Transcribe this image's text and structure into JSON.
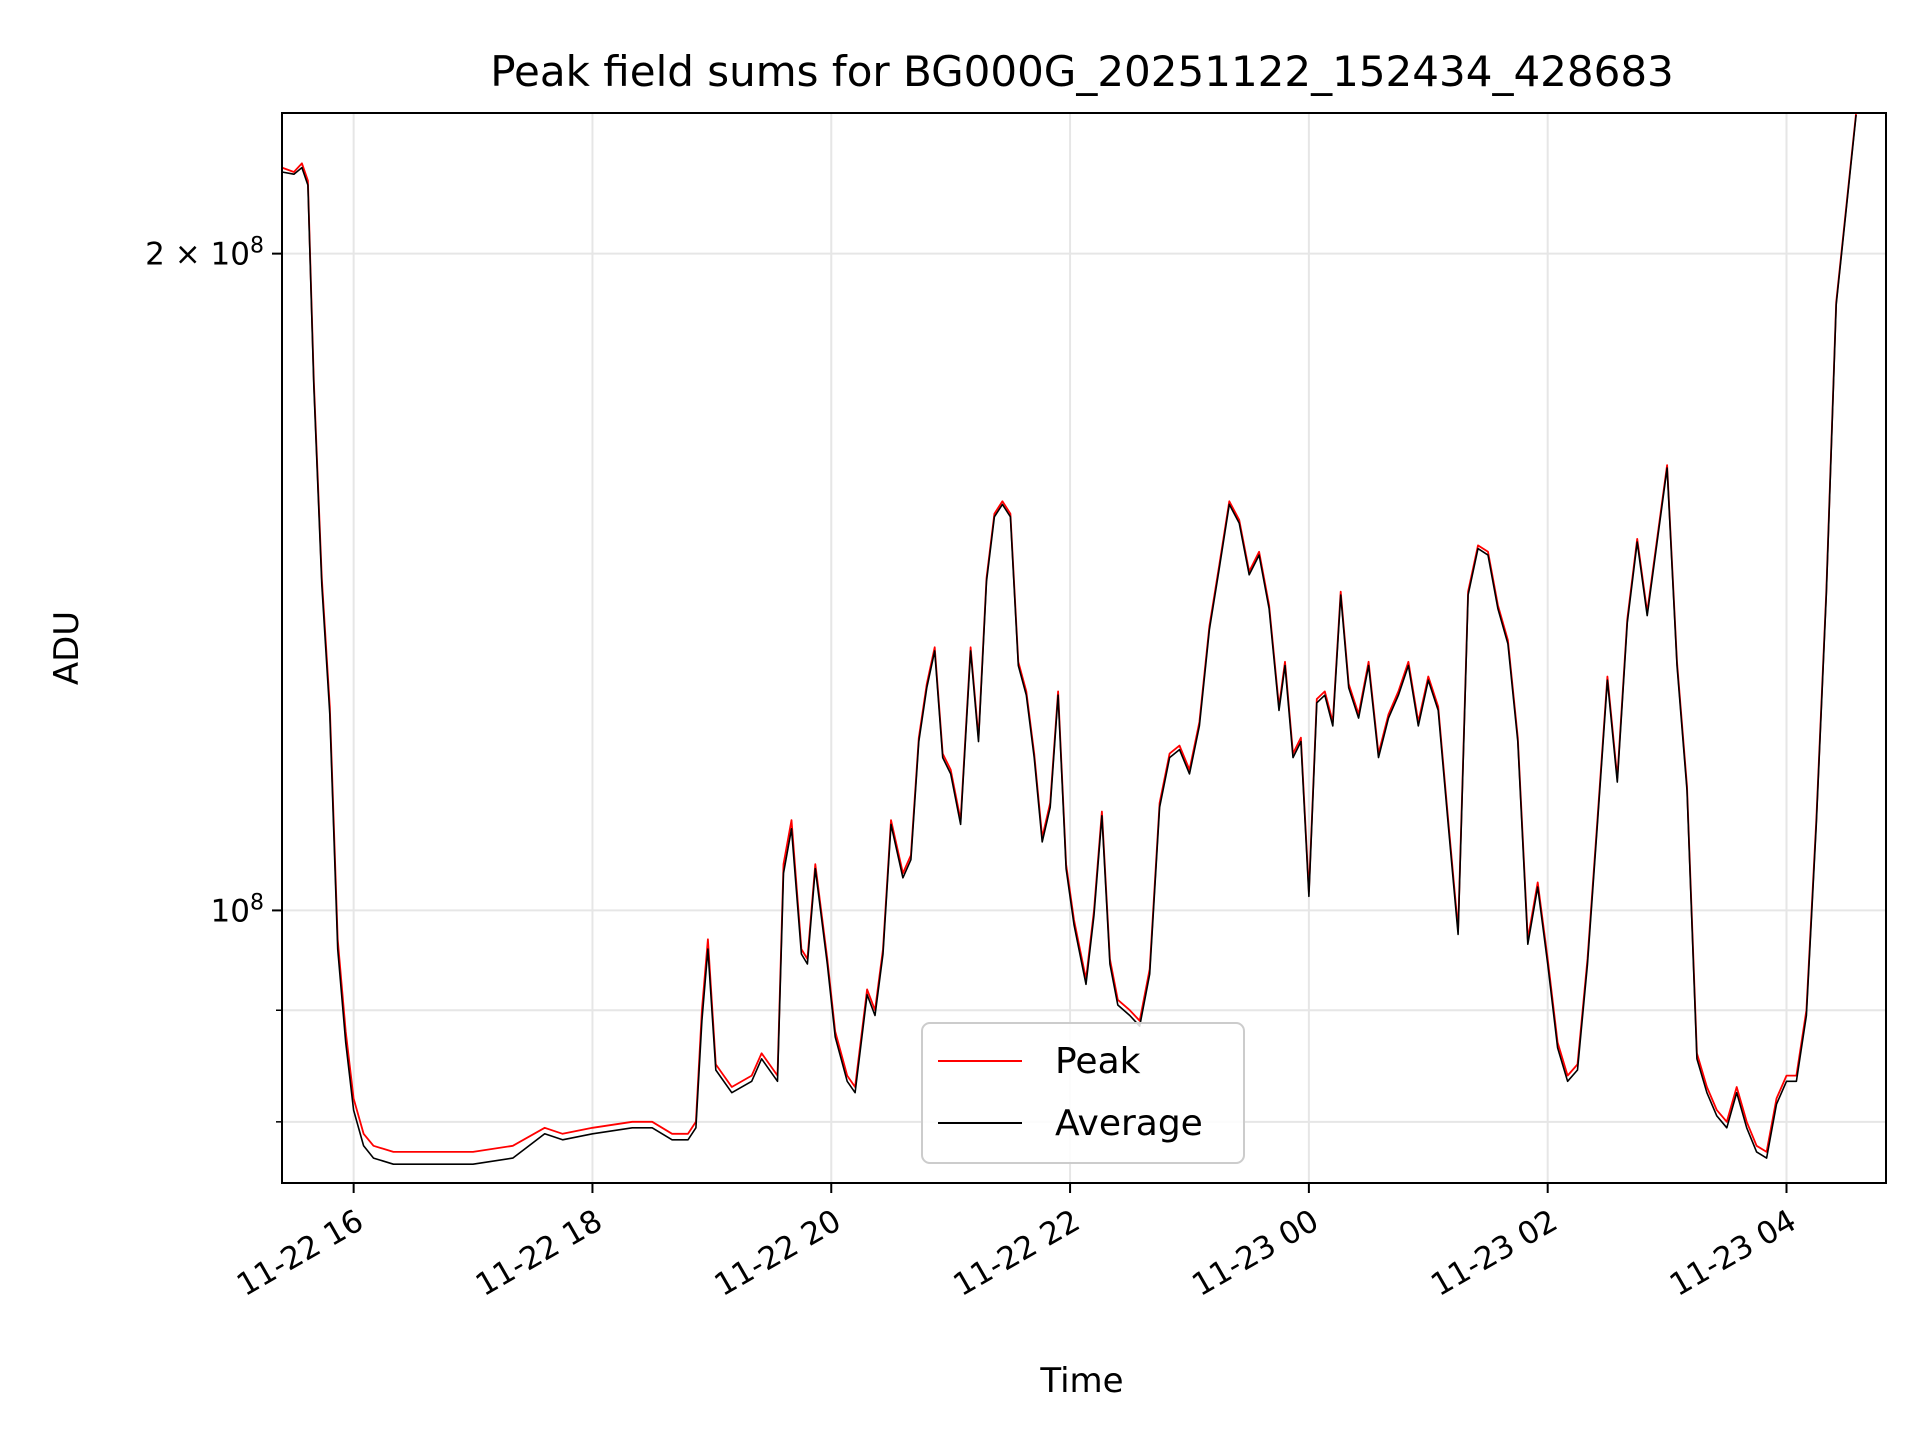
{
  "chart_data": {
    "type": "line",
    "title": "Peak field sums for BG000G_20251122_152434_428683",
    "xlabel": "Time",
    "ylabel": "ADU",
    "y_scale": "log",
    "grid": true,
    "legend_position": "lower-center",
    "xlim": [
      "2025-11-22 15:24",
      "2025-11-23 04:50"
    ],
    "ylim": [
      75000000,
      232000000
    ],
    "x_ticks": [
      {
        "t": "2025-11-22 16:00",
        "label": "11-22 16"
      },
      {
        "t": "2025-11-22 18:00",
        "label": "11-22 18"
      },
      {
        "t": "2025-11-22 20:00",
        "label": "11-22 20"
      },
      {
        "t": "2025-11-22 22:00",
        "label": "11-22 22"
      },
      {
        "t": "2025-11-23 00:00",
        "label": "11-23 00"
      },
      {
        "t": "2025-11-23 02:00",
        "label": "11-23 02"
      },
      {
        "t": "2025-11-23 04:00",
        "label": "11-23 04"
      }
    ],
    "y_ticks_major": [
      {
        "value": 100000000,
        "base": "10",
        "exp": "8",
        "coef": ""
      },
      {
        "value": 200000000,
        "base": "10",
        "exp": "8",
        "coef": "2"
      }
    ],
    "y_ticks_minor": [
      80000000,
      90000000
    ],
    "series": [
      {
        "name": "Peak",
        "color": "#ff0000"
      },
      {
        "name": "Average",
        "color": "#000000"
      }
    ],
    "x": [
      "2025-11-22 15:24",
      "2025-11-22 15:30",
      "2025-11-22 15:34",
      "2025-11-22 15:37",
      "2025-11-22 15:40",
      "2025-11-22 15:44",
      "2025-11-22 15:48",
      "2025-11-22 15:52",
      "2025-11-22 15:56",
      "2025-11-22 16:00",
      "2025-11-22 16:05",
      "2025-11-22 16:10",
      "2025-11-22 16:20",
      "2025-11-22 16:40",
      "2025-11-22 17:00",
      "2025-11-22 17:20",
      "2025-11-22 17:36",
      "2025-11-22 17:45",
      "2025-11-22 18:00",
      "2025-11-22 18:20",
      "2025-11-22 18:30",
      "2025-11-22 18:40",
      "2025-11-22 18:48",
      "2025-11-22 18:52",
      "2025-11-22 18:55",
      "2025-11-22 18:58",
      "2025-11-22 19:02",
      "2025-11-22 19:10",
      "2025-11-22 19:20",
      "2025-11-22 19:25",
      "2025-11-22 19:33",
      "2025-11-22 19:36",
      "2025-11-22 19:40",
      "2025-11-22 19:45",
      "2025-11-22 19:48",
      "2025-11-22 19:52",
      "2025-11-22 19:58",
      "2025-11-22 20:02",
      "2025-11-22 20:08",
      "2025-11-22 20:12",
      "2025-11-22 20:18",
      "2025-11-22 20:22",
      "2025-11-22 20:26",
      "2025-11-22 20:30",
      "2025-11-22 20:36",
      "2025-11-22 20:40",
      "2025-11-22 20:44",
      "2025-11-22 20:48",
      "2025-11-22 20:52",
      "2025-11-22 20:56",
      "2025-11-22 21:00",
      "2025-11-22 21:05",
      "2025-11-22 21:10",
      "2025-11-22 21:14",
      "2025-11-22 21:18",
      "2025-11-22 21:22",
      "2025-11-22 21:26",
      "2025-11-22 21:30",
      "2025-11-22 21:34",
      "2025-11-22 21:38",
      "2025-11-22 21:42",
      "2025-11-22 21:46",
      "2025-11-22 21:50",
      "2025-11-22 21:54",
      "2025-11-22 21:58",
      "2025-11-22 22:02",
      "2025-11-22 22:08",
      "2025-11-22 22:12",
      "2025-11-22 22:16",
      "2025-11-22 22:20",
      "2025-11-22 22:24",
      "2025-11-22 22:30",
      "2025-11-22 22:35",
      "2025-11-22 22:40",
      "2025-11-22 22:45",
      "2025-11-22 22:50",
      "2025-11-22 22:55",
      "2025-11-22 23:00",
      "2025-11-22 23:05",
      "2025-11-22 23:10",
      "2025-11-22 23:15",
      "2025-11-22 23:20",
      "2025-11-22 23:25",
      "2025-11-22 23:30",
      "2025-11-22 23:35",
      "2025-11-22 23:40",
      "2025-11-22 23:45",
      "2025-11-22 23:48",
      "2025-11-22 23:52",
      "2025-11-22 23:56",
      "2025-11-23 00:00",
      "2025-11-23 00:04",
      "2025-11-23 00:08",
      "2025-11-23 00:12",
      "2025-11-23 00:16",
      "2025-11-23 00:20",
      "2025-11-23 00:25",
      "2025-11-23 00:30",
      "2025-11-23 00:35",
      "2025-11-23 00:40",
      "2025-11-23 00:45",
      "2025-11-23 00:50",
      "2025-11-23 00:55",
      "2025-11-23 01:00",
      "2025-11-23 01:05",
      "2025-11-23 01:10",
      "2025-11-23 01:15",
      "2025-11-23 01:20",
      "2025-11-23 01:25",
      "2025-11-23 01:30",
      "2025-11-23 01:35",
      "2025-11-23 01:40",
      "2025-11-23 01:45",
      "2025-11-23 01:50",
      "2025-11-23 01:55",
      "2025-11-23 02:00",
      "2025-11-23 02:05",
      "2025-11-23 02:10",
      "2025-11-23 02:15",
      "2025-11-23 02:20",
      "2025-11-23 02:25",
      "2025-11-23 02:30",
      "2025-11-23 02:35",
      "2025-11-23 02:40",
      "2025-11-23 02:45",
      "2025-11-23 02:50",
      "2025-11-23 02:55",
      "2025-11-23 03:00",
      "2025-11-23 03:05",
      "2025-11-23 03:10",
      "2025-11-23 03:15",
      "2025-11-23 03:20",
      "2025-11-23 03:25",
      "2025-11-23 03:30",
      "2025-11-23 03:35",
      "2025-11-23 03:40",
      "2025-11-23 03:45",
      "2025-11-23 03:50",
      "2025-11-23 03:55",
      "2025-11-23 04:00",
      "2025-11-23 04:05",
      "2025-11-23 04:10",
      "2025-11-23 04:15",
      "2025-11-23 04:20",
      "2025-11-23 04:25",
      "2025-11-23 04:30",
      "2025-11-23 04:35",
      "2025-11-23 04:40",
      "2025-11-23 04:45",
      "2025-11-23 04:50"
    ],
    "peak": [
      219000000,
      218000000,
      220000000,
      216000000,
      175000000,
      142000000,
      124000000,
      97000000,
      88000000,
      82000000,
      79000000,
      78000000,
      77500000,
      77500000,
      77500000,
      78000000,
      79500000,
      79000000,
      79500000,
      80000000,
      80000000,
      79000000,
      79000000,
      80000000,
      90000000,
      97000000,
      85000000,
      83000000,
      84000000,
      86000000,
      84000000,
      105000000,
      110000000,
      96000000,
      95000000,
      105000000,
      95000000,
      88000000,
      84000000,
      83000000,
      92000000,
      90000000,
      96000000,
      110000000,
      104000000,
      106000000,
      120000000,
      127000000,
      132000000,
      118000000,
      116000000,
      110000000,
      132000000,
      120000000,
      142000000,
      152000000,
      154000000,
      152000000,
      130000000,
      126000000,
      118000000,
      108000000,
      112000000,
      126000000,
      105000000,
      99000000,
      93000000,
      100000000,
      111000000,
      95000000,
      91000000,
      90000000,
      89000000,
      94000000,
      112000000,
      118000000,
      119000000,
      116000000,
      122000000,
      135000000,
      144000000,
      154000000,
      151000000,
      143000000,
      146000000,
      138000000,
      124000000,
      130000000,
      118000000,
      120000000,
      102000000,
      125000000,
      126000000,
      122000000,
      140000000,
      127000000,
      123000000,
      130000000,
      118000000,
      123000000,
      126000000,
      130000000,
      122000000,
      128000000,
      124000000,
      110000000,
      98000000,
      140000000,
      147000000,
      146000000,
      138000000,
      133000000,
      120000000,
      97000000,
      103000000,
      95000000,
      87000000,
      84000000,
      85000000,
      95000000,
      110000000,
      128000000,
      115000000,
      136000000,
      148000000,
      137000000,
      148000000,
      160000000,
      130000000,
      114000000,
      86000000,
      83000000,
      81000000,
      80000000,
      83000000,
      80000000,
      78000000,
      77500000,
      82000000,
      84000000,
      84000000,
      90000000,
      110000000,
      140000000,
      190000000,
      210000000,
      232000000
    ],
    "average": [
      218000000,
      217500000,
      219000000,
      215000000,
      174000000,
      141000000,
      123000000,
      96000000,
      87000000,
      81000000,
      78000000,
      77000000,
      76500000,
      76500000,
      76500000,
      77000000,
      79000000,
      78500000,
      79000000,
      79500000,
      79500000,
      78500000,
      78500000,
      79500000,
      89000000,
      96000000,
      84500000,
      82500000,
      83500000,
      85500000,
      83500000,
      104000000,
      109000000,
      95500000,
      94500000,
      104500000,
      94500000,
      87500000,
      83500000,
      82500000,
      91500000,
      89500000,
      95500000,
      109500000,
      103500000,
      105500000,
      119500000,
      126500000,
      131500000,
      117500000,
      115500000,
      109500000,
      131500000,
      119500000,
      141500000,
      151500000,
      153500000,
      151500000,
      129500000,
      125500000,
      117500000,
      107500000,
      111500000,
      125500000,
      104500000,
      98500000,
      92500000,
      99500000,
      110500000,
      94500000,
      90500000,
      89500000,
      88500000,
      93500000,
      111500000,
      117500000,
      118500000,
      115500000,
      121500000,
      134500000,
      143500000,
      153500000,
      150500000,
      142500000,
      145500000,
      137500000,
      123500000,
      129500000,
      117500000,
      119500000,
      101500000,
      124500000,
      125500000,
      121500000,
      139500000,
      126500000,
      122500000,
      129500000,
      117500000,
      122500000,
      125500000,
      129500000,
      121500000,
      127500000,
      123500000,
      109500000,
      97500000,
      139500000,
      146500000,
      145500000,
      137500000,
      132500000,
      119500000,
      96500000,
      102500000,
      94500000,
      86500000,
      83500000,
      84500000,
      94500000,
      109500000,
      127500000,
      114500000,
      135500000,
      147500000,
      136500000,
      147500000,
      159500000,
      129500000,
      113500000,
      85500000,
      82500000,
      80500000,
      79500000,
      82500000,
      79500000,
      77500000,
      77000000,
      81500000,
      83500000,
      83500000,
      89500000,
      109500000,
      139500000,
      189500000,
      209500000,
      231500000
    ]
  }
}
